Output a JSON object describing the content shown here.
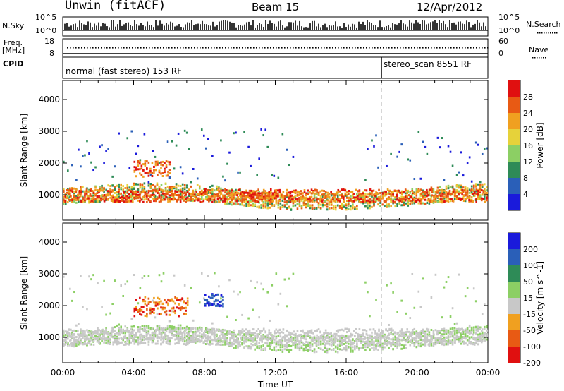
{
  "header": {
    "station": "Unwin (fitACF)",
    "beam": "Beam 15",
    "date": "12/Apr/2012"
  },
  "strip_labels": {
    "nsky": "N.Sky",
    "nsearch": "N.Search",
    "freq": "Freq.",
    "freq_unit": "[MHz]",
    "nave": "Nave",
    "cpid": "CPID",
    "nsky_ticks": [
      "10^5",
      "10^0"
    ],
    "freq_ticks": [
      "18",
      "8"
    ],
    "nave_ticks": [
      "60",
      "0"
    ]
  },
  "cpid_modes": [
    {
      "label": "normal (fast stereo) 153 RF",
      "start": "00:00",
      "end": "18:00"
    },
    {
      "label": "stereo_scan 8551 RF",
      "start": "18:00",
      "end": "24:00"
    }
  ],
  "chart_data": [
    {
      "type": "heatmap",
      "panel": "power",
      "xlabel": "",
      "ylabel": "Slant Range [km]",
      "xlim": [
        0,
        24
      ],
      "ylim": [
        200,
        4600
      ],
      "yticks": [
        "1000",
        "2000",
        "3000",
        "4000"
      ],
      "colorbar": {
        "label": "Power [dB]",
        "ticks": [
          "4",
          "8",
          "12",
          "16",
          "20",
          "24",
          "28"
        ],
        "range": [
          0,
          32
        ],
        "colors": [
          "#1a1adb",
          "#2a5fb8",
          "#2e8b57",
          "#8ccf64",
          "#e6d23a",
          "#f0a020",
          "#e85a14",
          "#e01010"
        ]
      },
      "features": [
        {
          "desc": "ground/near backscatter band",
          "range_km": [
            800,
            1200
          ],
          "time_h": [
            0,
            24
          ],
          "power_db": [
            12,
            28
          ]
        },
        {
          "desc": "intense echo",
          "range_km": [
            1600,
            2100
          ],
          "time_h": [
            4,
            6
          ],
          "power_db": [
            24,
            30
          ]
        },
        {
          "desc": "intense echo",
          "range_km": [
            900,
            1100
          ],
          "time_h": [
            10,
            12
          ],
          "power_db": [
            24,
            30
          ]
        }
      ]
    },
    {
      "type": "heatmap",
      "panel": "velocity",
      "xlabel": "Time UT",
      "ylabel": "Slant Range [km]",
      "xlim": [
        0,
        24
      ],
      "ylim": [
        200,
        4600
      ],
      "xticks": [
        "00:00",
        "04:00",
        "08:00",
        "12:00",
        "16:00",
        "20:00",
        "00:00"
      ],
      "yticks": [
        "1000",
        "2000",
        "3000",
        "4000"
      ],
      "colorbar": {
        "label": "Velocity [m s^-1]",
        "ticks": [
          "200",
          "100",
          "50",
          "15",
          "-15",
          "-50",
          "-100",
          "-200"
        ],
        "colors": [
          "#1a1adb",
          "#2a5fb8",
          "#2e8b57",
          "#8ccf64",
          "#c8c8c8",
          "#f0a020",
          "#e85a14",
          "#e01010"
        ]
      },
      "features": [
        {
          "desc": "ground scatter (grey)",
          "range_km": [
            800,
            1300
          ],
          "time_h": [
            0,
            24
          ],
          "velocity": [
            -15,
            15
          ]
        },
        {
          "desc": "negative velocity patch",
          "range_km": [
            1700,
            2300
          ],
          "time_h": [
            4,
            7
          ],
          "velocity": [
            -200,
            -50
          ]
        },
        {
          "desc": "positive velocity patch",
          "range_km": [
            2000,
            2400
          ],
          "time_h": [
            8,
            9
          ],
          "velocity": [
            100,
            200
          ]
        }
      ]
    }
  ]
}
